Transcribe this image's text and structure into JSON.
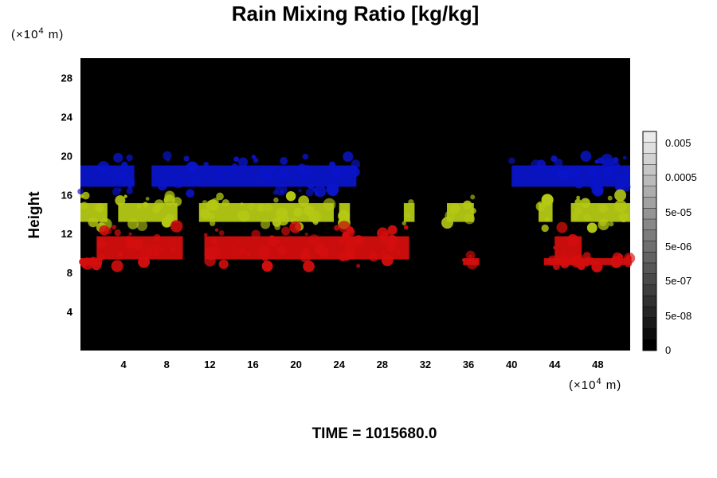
{
  "chart_data": {
    "type": "heatmap",
    "title": "Rain Mixing Ratio [kg/kg]",
    "ylabel": "Height",
    "x_unit": "(×10",
    "x_unit_exp": "4",
    "x_unit_tail": " m)",
    "y_unit": "(×10",
    "y_unit_exp": "4",
    "y_unit_tail": " m)",
    "xlim": [
      0,
      51
    ],
    "ylim": [
      0,
      30
    ],
    "x_ticks": [
      4,
      8,
      12,
      16,
      20,
      24,
      28,
      32,
      36,
      40,
      44,
      48
    ],
    "y_ticks": [
      4,
      8,
      12,
      16,
      20,
      24,
      28
    ],
    "background_color": "#000000",
    "layers": [
      {
        "band": [
          16,
          20
        ],
        "color": "#0a14c8",
        "segments": [
          [
            0,
            5.0
          ],
          [
            6.6,
            25.6
          ],
          [
            40.0,
            51.0
          ]
        ]
      },
      {
        "band": [
          12.5,
          16
        ],
        "color": "#b4c814",
        "segments": [
          [
            0,
            2.5
          ],
          [
            3.5,
            9.0
          ],
          [
            11.0,
            23.5
          ],
          [
            24.0,
            25.0
          ],
          [
            30.0,
            31.0
          ],
          [
            34.0,
            36.5
          ],
          [
            42.5,
            43.8
          ],
          [
            45.5,
            51.0
          ]
        ]
      },
      {
        "band": [
          8.5,
          12.8
        ],
        "color": "#d40e0e",
        "segments": [
          [
            1.5,
            9.5
          ],
          [
            11.5,
            25.5
          ],
          [
            24.5,
            30.5
          ],
          [
            44.0,
            46.5
          ]
        ]
      },
      {
        "band": [
          8.5,
          9.8
        ],
        "color": "#d40e0e",
        "segments": [
          [
            0,
            2.0
          ],
          [
            35.5,
            37.0
          ],
          [
            43.0,
            51.0
          ]
        ]
      }
    ],
    "colorbar": {
      "ticks": [
        "0.005",
        "0.0005",
        "5e-05",
        "5e-06",
        "5e-07",
        "5e-08",
        "0"
      ],
      "levels": 20
    },
    "time_label": "TIME = 1015680.0"
  }
}
